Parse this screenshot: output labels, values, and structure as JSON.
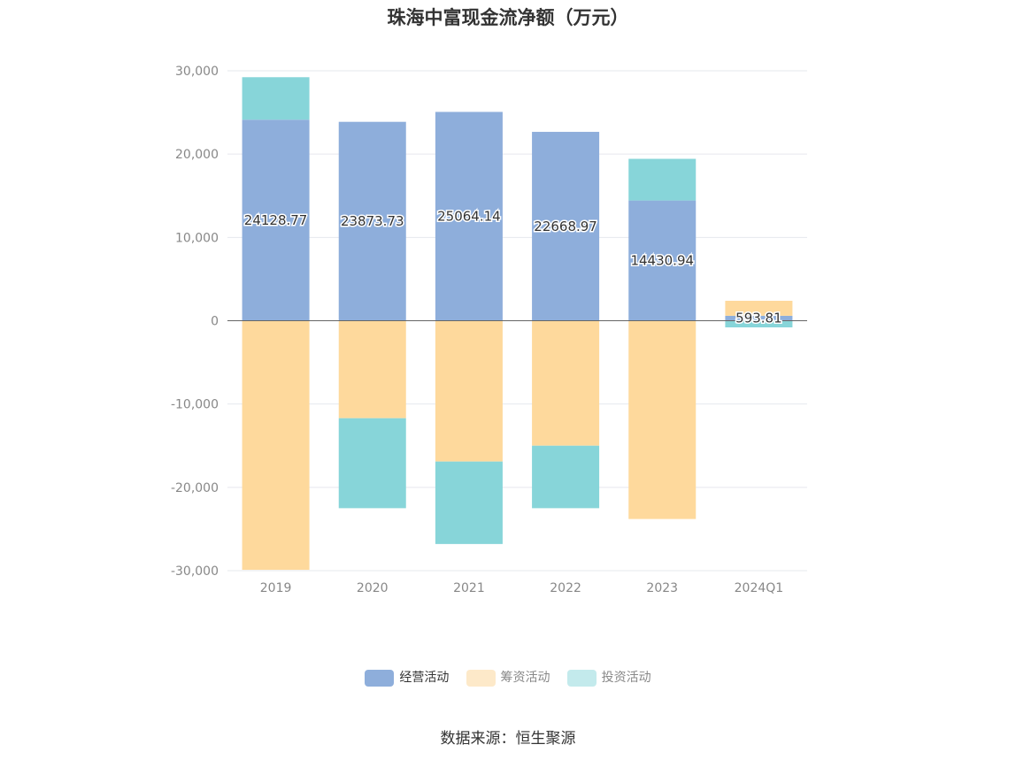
{
  "title": "珠海中富现金流净额（万元）",
  "source": "数据来源：恒生聚源",
  "chart_data": {
    "type": "bar",
    "stacked": true,
    "categories": [
      "2019",
      "2020",
      "2021",
      "2022",
      "2023",
      "2024Q1"
    ],
    "ylim": [
      -30000,
      30000
    ],
    "yticks": [
      30000,
      20000,
      10000,
      0,
      -10000,
      -20000,
      -30000
    ],
    "ytick_labels": [
      "30,000",
      "20,000",
      "10,000",
      "0",
      "-10,000",
      "-20,000",
      "-30,000"
    ],
    "grid": true,
    "legend_position": "bottom-center",
    "series": [
      {
        "name": "经营活动",
        "color": "#8eaedb",
        "values": [
          24128.77,
          23873.73,
          25064.14,
          22668.97,
          14430.94,
          593.81
        ],
        "labels": [
          "24128.77",
          "23873.73",
          "25064.14",
          "22668.97",
          "14430.94",
          "593.81"
        ]
      },
      {
        "name": "筹资活动",
        "color": "#fed99c",
        "values": [
          -29900,
          -11700,
          -16900,
          -15000,
          -23800,
          1800
        ]
      },
      {
        "name": "投资活动",
        "color": "#87d5d9",
        "values": [
          5100,
          -10800,
          -9900,
          -7500,
          5000,
          -800
        ]
      }
    ]
  }
}
